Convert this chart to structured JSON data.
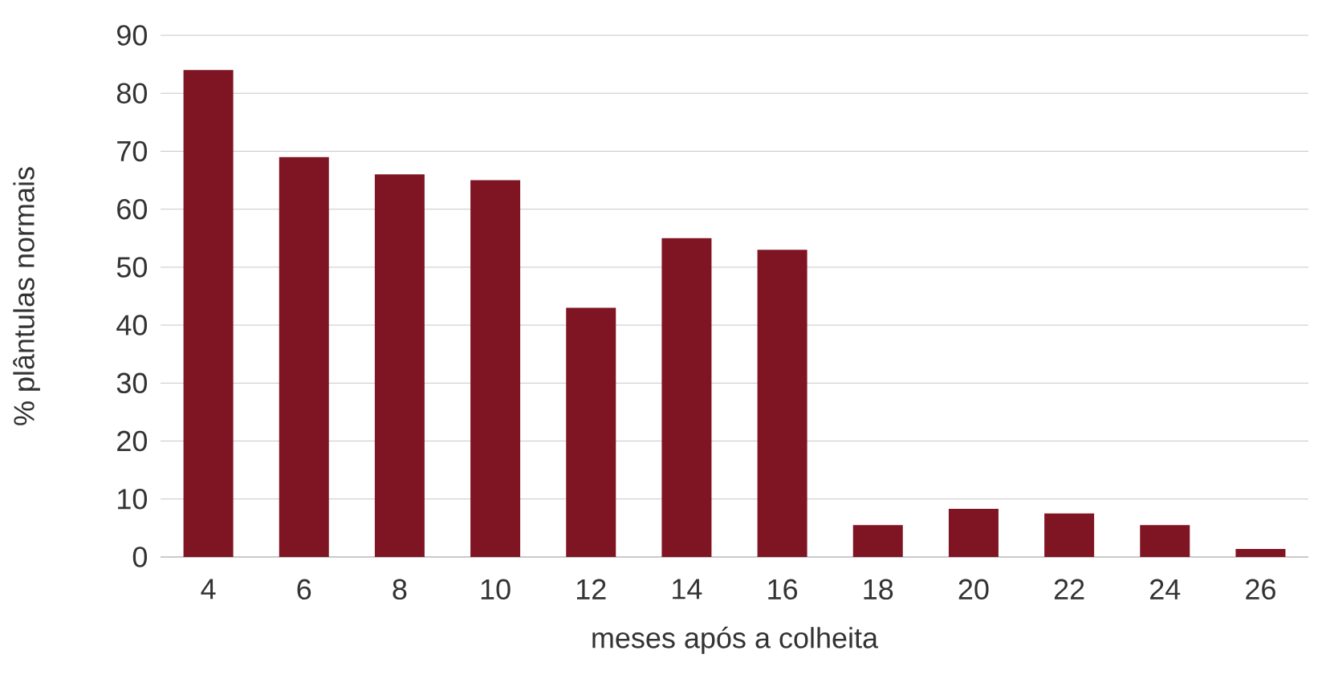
{
  "chart_data": {
    "type": "bar",
    "xlabel": "meses após a colheita",
    "ylabel": "% plântulas normais",
    "categories": [
      "4",
      "6",
      "8",
      "10",
      "12",
      "14",
      "16",
      "18",
      "20",
      "22",
      "24",
      "26"
    ],
    "values": [
      84,
      69,
      66,
      65,
      43,
      55,
      53,
      5.5,
      8.3,
      7.5,
      5.5,
      1.4
    ],
    "color": "#7f1423",
    "ylim": [
      0,
      90
    ],
    "yticks": [
      0,
      10,
      20,
      30,
      40,
      50,
      60,
      70,
      80,
      90
    ],
    "grid": "y"
  }
}
